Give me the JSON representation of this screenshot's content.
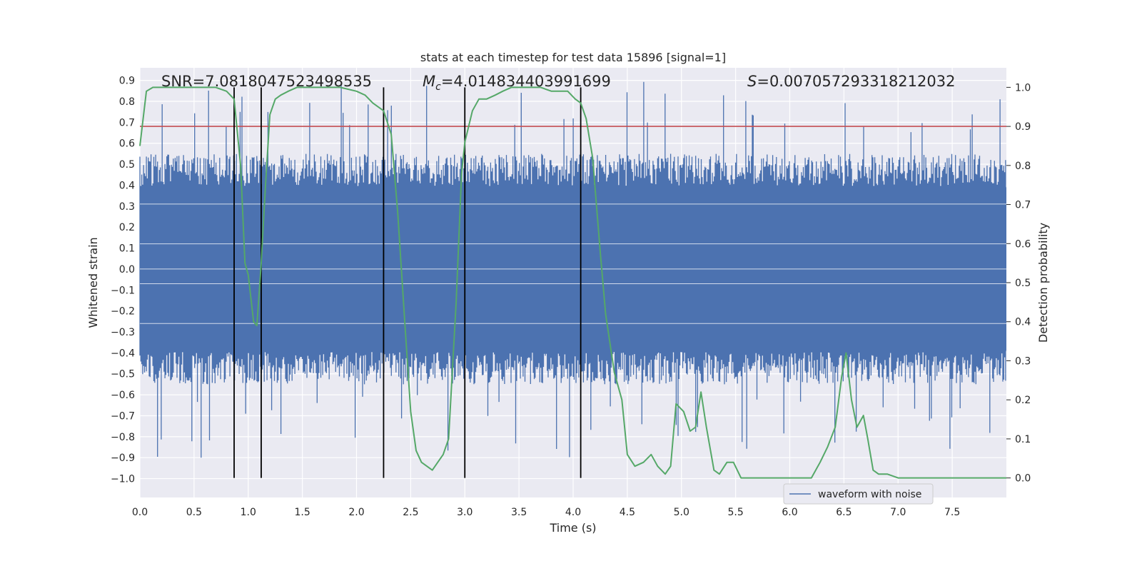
{
  "chart_data": {
    "type": "line",
    "title": "stats at each timestep for test data 15896 [signal=1]",
    "xlabel": "Time (s)",
    "ylabel": "Whitened strain",
    "ylabel_right": "Detection probability",
    "xlim": [
      0.0,
      8.0
    ],
    "ylim": [
      -1.09,
      0.96
    ],
    "ylim_right": [
      -0.05,
      1.05
    ],
    "xticks": [
      0.0,
      0.5,
      1.0,
      1.5,
      2.0,
      2.5,
      3.0,
      3.5,
      4.0,
      4.5,
      5.0,
      5.5,
      6.0,
      6.5,
      7.0,
      7.5
    ],
    "yticks": [
      -1.0,
      -0.9,
      -0.8,
      -0.7,
      -0.6,
      -0.5,
      -0.4,
      -0.3,
      -0.2,
      -0.1,
      0.0,
      0.1,
      0.2,
      0.3,
      0.4,
      0.5,
      0.6,
      0.7,
      0.8,
      0.9
    ],
    "yticks_right": [
      0.0,
      0.1,
      0.2,
      0.3,
      0.4,
      0.5,
      0.6,
      0.7,
      0.8,
      0.9,
      1.0
    ],
    "grid": true,
    "legend_position": "lower-right",
    "annotations": {
      "snr": "SNR=7.081804752349853​5",
      "mc_prefix": "M",
      "mc_sub": "c",
      "mc_value": "=4.014834403991699",
      "s_prefix": "S",
      "s_value": "=0.007057293318212032"
    },
    "threshold_right": 0.9,
    "vertical_lines_x": [
      0.87,
      1.12,
      2.25,
      3.0,
      4.07
    ],
    "series": [
      {
        "name": "waveform with noise",
        "color": "#4c72b0",
        "kind": "noise",
        "core_range": [
          -0.39,
          0.39
        ],
        "envelope_range": [
          -0.55,
          0.55
        ],
        "peak_range": [
          -1.0,
          0.9
        ]
      },
      {
        "color": "#55a868",
        "axis": "right",
        "x": [
          0.0,
          0.06,
          0.12,
          0.2,
          0.3,
          0.4,
          0.5,
          0.6,
          0.7,
          0.8,
          0.87,
          0.93,
          0.97,
          1.0,
          1.05,
          1.08,
          1.12,
          1.16,
          1.2,
          1.25,
          1.3,
          1.37,
          1.45,
          1.55,
          1.7,
          1.85,
          2.0,
          2.08,
          2.15,
          2.25,
          2.32,
          2.38,
          2.45,
          2.5,
          2.55,
          2.6,
          2.65,
          2.7,
          2.75,
          2.8,
          2.85,
          2.92,
          2.97,
          3.0,
          3.07,
          3.13,
          3.2,
          3.28,
          3.35,
          3.43,
          3.5,
          3.6,
          3.7,
          3.8,
          3.88,
          3.95,
          4.02,
          4.07,
          4.12,
          4.18,
          4.25,
          4.3,
          4.38,
          4.45,
          4.5,
          4.57,
          4.65,
          4.72,
          4.78,
          4.85,
          4.9,
          4.95,
          5.02,
          5.08,
          5.13,
          5.18,
          5.23,
          5.3,
          5.35,
          5.42,
          5.48,
          5.55,
          5.62,
          5.7,
          5.78,
          5.85,
          5.92,
          6.0,
          6.1,
          6.2,
          6.28,
          6.35,
          6.42,
          6.48,
          6.52,
          6.57,
          6.62,
          6.68,
          6.72,
          6.77,
          6.82,
          6.9,
          7.0,
          7.2,
          7.4,
          7.6,
          7.8,
          8.0
        ],
        "values": [
          0.85,
          0.99,
          1.0,
          1.0,
          1.0,
          1.0,
          1.0,
          1.0,
          1.0,
          0.99,
          0.97,
          0.8,
          0.55,
          0.52,
          0.4,
          0.39,
          0.55,
          0.75,
          0.93,
          0.97,
          0.98,
          0.99,
          1.0,
          1.0,
          1.0,
          1.0,
          0.99,
          0.98,
          0.96,
          0.94,
          0.88,
          0.68,
          0.38,
          0.17,
          0.07,
          0.04,
          0.03,
          0.02,
          0.04,
          0.06,
          0.1,
          0.45,
          0.78,
          0.86,
          0.94,
          0.97,
          0.97,
          0.98,
          0.99,
          1.0,
          1.0,
          1.0,
          1.0,
          0.99,
          0.99,
          0.99,
          0.97,
          0.96,
          0.92,
          0.82,
          0.58,
          0.42,
          0.27,
          0.2,
          0.06,
          0.03,
          0.04,
          0.06,
          0.03,
          0.01,
          0.03,
          0.19,
          0.17,
          0.12,
          0.13,
          0.22,
          0.13,
          0.02,
          0.01,
          0.04,
          0.04,
          0.0,
          0.0,
          0.0,
          0.0,
          0.0,
          0.0,
          0.0,
          0.0,
          0.0,
          0.04,
          0.08,
          0.13,
          0.26,
          0.32,
          0.2,
          0.13,
          0.16,
          0.1,
          0.02,
          0.01,
          0.01,
          0.0,
          0.0,
          0.0,
          0.0,
          0.0,
          0.0
        ]
      }
    ]
  }
}
